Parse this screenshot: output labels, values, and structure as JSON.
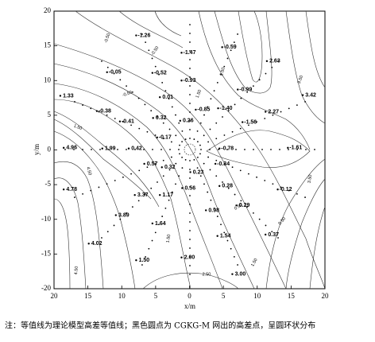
{
  "chart_data": {
    "type": "scatter",
    "x_label": "x/m",
    "y_label": "y/m",
    "xlim": [
      -20,
      20
    ],
    "ylim": [
      -20,
      20
    ],
    "xticks": [
      {
        "value": -20,
        "label": "20"
      },
      {
        "value": -15,
        "label": "15"
      },
      {
        "value": -10,
        "label": "10"
      },
      {
        "value": -5,
        "label": "5"
      },
      0,
      5,
      10,
      15,
      20
    ],
    "yticks": [
      -20,
      -15,
      -10,
      -5,
      0,
      5,
      10,
      15,
      20
    ],
    "x": [
      -6.7,
      0,
      6,
      12.6,
      -11,
      -4.3,
      0,
      8.3,
      17.9,
      -17.9,
      -3.2,
      -12.5,
      2.1,
      5.4,
      12.4,
      -9.1,
      -4.2,
      -0.2,
      9,
      -3.6,
      -17.4,
      -11.7,
      -7.8,
      5.6,
      15.7,
      -5.5,
      5,
      -2.9,
      1.3,
      5.6,
      14.2,
      -17.4,
      0.1,
      -6.9,
      -3.2,
      3.6,
      8.1,
      -9.7,
      -4.3,
      5.3,
      12.4,
      -13.7,
      0,
      -6.7,
      7.5
    ],
    "y": [
      16.5,
      14,
      14.8,
      12.8,
      11.2,
      11.1,
      10,
      8.7,
      7.9,
      7.8,
      7.6,
      5.6,
      5.8,
      6,
      5.5,
      4.1,
      4.6,
      4.2,
      4,
      1.8,
      0.3,
      0.2,
      0.2,
      0.2,
      0.3,
      -2,
      -2,
      -2.5,
      -3.2,
      -5.2,
      -5.7,
      -5.7,
      -5.5,
      -6.5,
      -6.5,
      -8.7,
      -8,
      -9.4,
      -10.6,
      -12.4,
      -12.2,
      -13.5,
      -15.5,
      -15.9,
      -17.9
    ],
    "values": [
      -1.26,
      -1.47,
      -0.59,
      2.63,
      -0.05,
      -0.52,
      -0.93,
      -0.99,
      3.42,
      1.33,
      0.01,
      -0.38,
      -0.85,
      -1.4,
      2.27,
      -0.41,
      0.32,
      0.26,
      -1.56,
      -0.17,
      4.96,
      1.99,
      0.42,
      -0.78,
      -1.61,
      0.57,
      -0.34,
      0.32,
      0.23,
      0.28,
      -0.12,
      4.78,
      0.56,
      3.37,
      1.17,
      0.98,
      0.29,
      3.89,
      1.64,
      1.54,
      0.37,
      4.02,
      2,
      1.5,
      3
    ],
    "value_labels": [
      "-1.26",
      "-1.47",
      "-0.59",
      "2.63",
      "-0.05",
      "-0.52",
      "-0.93",
      "-0.99",
      "3.42",
      "1.33",
      "0.01",
      "-0.38",
      "-0.85",
      "-1.40",
      "2.27",
      "-0.41",
      "0.32",
      "0.26",
      "-1.56",
      "-0.17",
      "4.96",
      "1.99",
      "0.42",
      "-0.78",
      "-1.61",
      "0.57",
      "-0.34",
      "0.32",
      "0.23",
      "0.28",
      "-0.12",
      "4.78",
      "0.56",
      "3.37",
      "1.17",
      "0.98",
      "0.29",
      "3.89",
      "1.64",
      "1.54",
      "0.37",
      "4.02",
      "2.00",
      "1.50",
      "3.00"
    ],
    "contour_labels": [
      "-0.50",
      "-0.50",
      "-0.50",
      "1.50",
      "1.50",
      "2.50",
      "3.50",
      "4.50",
      "4.50",
      "0.50",
      "1.50",
      "2.50",
      "3.50",
      "1.50",
      "0.50"
    ],
    "caption": "注：等值线为理论模型高差等值线；黑色圆点为 CGKG-M 网出的高差点，呈圆环状分布"
  }
}
